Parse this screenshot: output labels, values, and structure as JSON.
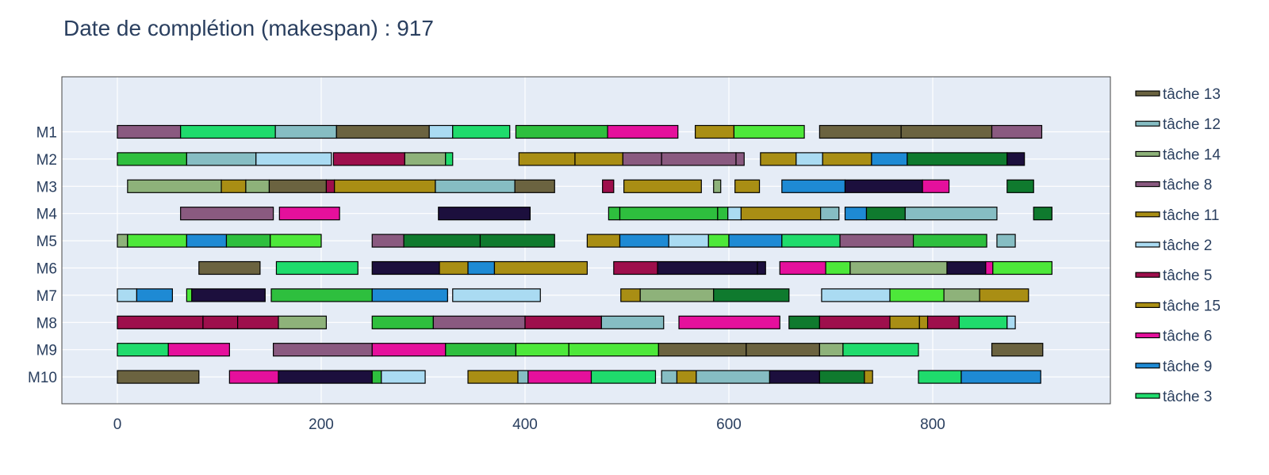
{
  "chart_data": {
    "type": "gantt",
    "title": "Date de complétion (makespan) : 917",
    "xlabel": "",
    "ylabel": "",
    "xlim": [
      -53,
      970
    ],
    "x_ticks": [
      0,
      200,
      400,
      600,
      800
    ],
    "grid": true,
    "legend_position": "right",
    "machines": [
      "M1",
      "M2",
      "M3",
      "M4",
      "M5",
      "M6",
      "M7",
      "M8",
      "M9",
      "M10"
    ],
    "legend": [
      {
        "name": "tâche 13",
        "color": "#6b6340"
      },
      {
        "name": "tâche 12",
        "color": "#86bdc3"
      },
      {
        "name": "tâche 14",
        "color": "#8eb27a"
      },
      {
        "name": "tâche 8",
        "color": "#8a5a80"
      },
      {
        "name": "tâche 11",
        "color": "#a98e14"
      },
      {
        "name": "tâche 2",
        "color": "#aadbf2"
      },
      {
        "name": "tâche 5",
        "color": "#9e0f4c"
      },
      {
        "name": "tâche 15",
        "color": "#a98e14"
      },
      {
        "name": "tâche 6",
        "color": "#e5109c"
      },
      {
        "name": "tâche 9",
        "color": "#1e8ad4"
      },
      {
        "name": "tâche 3",
        "color": "#1fdb6c"
      }
    ],
    "bars": [
      {
        "m": 0,
        "s": 0,
        "e": 62,
        "c": "#8a5a80"
      },
      {
        "m": 0,
        "s": 62,
        "e": 155,
        "c": "#1fdb6c"
      },
      {
        "m": 0,
        "s": 155,
        "e": 215,
        "c": "#86bdc3"
      },
      {
        "m": 0,
        "s": 215,
        "e": 306,
        "c": "#6b6340"
      },
      {
        "m": 0,
        "s": 306,
        "e": 329,
        "c": "#aadbf2"
      },
      {
        "m": 0,
        "s": 329,
        "e": 385,
        "c": "#1fdb6c"
      },
      {
        "m": 0,
        "s": 391,
        "e": 481,
        "c": "#2ebf3e"
      },
      {
        "m": 0,
        "s": 481,
        "e": 550,
        "c": "#e5109c"
      },
      {
        "m": 0,
        "s": 567,
        "e": 605,
        "c": "#a98e14"
      },
      {
        "m": 0,
        "s": 605,
        "e": 674,
        "c": "#4de83a"
      },
      {
        "m": 0,
        "s": 689,
        "e": 769,
        "c": "#6b6340"
      },
      {
        "m": 0,
        "s": 769,
        "e": 858,
        "c": "#6b6340"
      },
      {
        "m": 0,
        "s": 858,
        "e": 907,
        "c": "#8a5a80"
      },
      {
        "m": 1,
        "s": 0,
        "e": 68,
        "c": "#2ebf3e"
      },
      {
        "m": 1,
        "s": 68,
        "e": 136,
        "c": "#86bdc3"
      },
      {
        "m": 1,
        "s": 136,
        "e": 210,
        "c": "#aadbf2"
      },
      {
        "m": 1,
        "s": 212,
        "e": 282,
        "c": "#9e0f4c"
      },
      {
        "m": 1,
        "s": 282,
        "e": 322,
        "c": "#8eb27a"
      },
      {
        "m": 1,
        "s": 322,
        "e": 329,
        "c": "#1fdb6c"
      },
      {
        "m": 1,
        "s": 394,
        "e": 449,
        "c": "#a98e14"
      },
      {
        "m": 1,
        "s": 449,
        "e": 496,
        "c": "#a98e14"
      },
      {
        "m": 1,
        "s": 496,
        "e": 534,
        "c": "#8a5a80"
      },
      {
        "m": 1,
        "s": 534,
        "e": 607,
        "c": "#8a5a80"
      },
      {
        "m": 1,
        "s": 607,
        "e": 615,
        "c": "#8a5a80"
      },
      {
        "m": 1,
        "s": 631,
        "e": 666,
        "c": "#a98e14"
      },
      {
        "m": 1,
        "s": 666,
        "e": 692,
        "c": "#aadbf2"
      },
      {
        "m": 1,
        "s": 692,
        "e": 740,
        "c": "#a98e14"
      },
      {
        "m": 1,
        "s": 740,
        "e": 775,
        "c": "#1e8ad4"
      },
      {
        "m": 1,
        "s": 775,
        "e": 873,
        "c": "#0f7a2e"
      },
      {
        "m": 1,
        "s": 873,
        "e": 890,
        "c": "#1c0f3d"
      },
      {
        "m": 2,
        "s": 10,
        "e": 102,
        "c": "#8eb27a"
      },
      {
        "m": 2,
        "s": 102,
        "e": 126,
        "c": "#a98e14"
      },
      {
        "m": 2,
        "s": 126,
        "e": 149,
        "c": "#8eb27a"
      },
      {
        "m": 2,
        "s": 149,
        "e": 205,
        "c": "#6b6340"
      },
      {
        "m": 2,
        "s": 205,
        "e": 213,
        "c": "#9e0f4c"
      },
      {
        "m": 2,
        "s": 213,
        "e": 312,
        "c": "#a98e14"
      },
      {
        "m": 2,
        "s": 312,
        "e": 390,
        "c": "#86bdc3"
      },
      {
        "m": 2,
        "s": 390,
        "e": 429,
        "c": "#6b6340"
      },
      {
        "m": 2,
        "s": 476,
        "e": 487,
        "c": "#9e0f4c"
      },
      {
        "m": 2,
        "s": 497,
        "e": 573,
        "c": "#a98e14"
      },
      {
        "m": 2,
        "s": 585,
        "e": 592,
        "c": "#8eb27a"
      },
      {
        "m": 2,
        "s": 606,
        "e": 630,
        "c": "#a98e14"
      },
      {
        "m": 2,
        "s": 652,
        "e": 714,
        "c": "#1e8ad4"
      },
      {
        "m": 2,
        "s": 714,
        "e": 790,
        "c": "#1c0f3d"
      },
      {
        "m": 2,
        "s": 790,
        "e": 816,
        "c": "#e5109c"
      },
      {
        "m": 2,
        "s": 873,
        "e": 899,
        "c": "#0f7a2e"
      },
      {
        "m": 3,
        "s": 62,
        "e": 153,
        "c": "#8a5a80"
      },
      {
        "m": 3,
        "s": 159,
        "e": 218,
        "c": "#e5109c"
      },
      {
        "m": 3,
        "s": 315,
        "e": 405,
        "c": "#1c0f3d"
      },
      {
        "m": 3,
        "s": 482,
        "e": 493,
        "c": "#2ebf3e"
      },
      {
        "m": 3,
        "s": 493,
        "e": 589,
        "c": "#2ebf3e"
      },
      {
        "m": 3,
        "s": 589,
        "e": 599,
        "c": "#2ebf3e"
      },
      {
        "m": 3,
        "s": 599,
        "e": 612,
        "c": "#aadbf2"
      },
      {
        "m": 3,
        "s": 612,
        "e": 690,
        "c": "#a98e14"
      },
      {
        "m": 3,
        "s": 690,
        "e": 708,
        "c": "#86bdc3"
      },
      {
        "m": 3,
        "s": 714,
        "e": 735,
        "c": "#1e8ad4"
      },
      {
        "m": 3,
        "s": 735,
        "e": 773,
        "c": "#0f7a2e"
      },
      {
        "m": 3,
        "s": 773,
        "e": 863,
        "c": "#86bdc3"
      },
      {
        "m": 3,
        "s": 899,
        "e": 917,
        "c": "#0f7a2e"
      },
      {
        "m": 4,
        "s": 0,
        "e": 10,
        "c": "#8eb27a"
      },
      {
        "m": 4,
        "s": 10,
        "e": 68,
        "c": "#4de83a"
      },
      {
        "m": 4,
        "s": 68,
        "e": 107,
        "c": "#1e8ad4"
      },
      {
        "m": 4,
        "s": 107,
        "e": 150,
        "c": "#2ebf3e"
      },
      {
        "m": 4,
        "s": 150,
        "e": 200,
        "c": "#4de83a"
      },
      {
        "m": 4,
        "s": 250,
        "e": 281,
        "c": "#8a5a80"
      },
      {
        "m": 4,
        "s": 281,
        "e": 356,
        "c": "#0f7a2e"
      },
      {
        "m": 4,
        "s": 356,
        "e": 429,
        "c": "#0f7a2e"
      },
      {
        "m": 4,
        "s": 461,
        "e": 493,
        "c": "#a98e14"
      },
      {
        "m": 4,
        "s": 493,
        "e": 541,
        "c": "#1e8ad4"
      },
      {
        "m": 4,
        "s": 541,
        "e": 580,
        "c": "#aadbf2"
      },
      {
        "m": 4,
        "s": 580,
        "e": 600,
        "c": "#4de83a"
      },
      {
        "m": 4,
        "s": 600,
        "e": 652,
        "c": "#1e8ad4"
      },
      {
        "m": 4,
        "s": 652,
        "e": 709,
        "c": "#1fdb6c"
      },
      {
        "m": 4,
        "s": 709,
        "e": 781,
        "c": "#8a5a80"
      },
      {
        "m": 4,
        "s": 781,
        "e": 853,
        "c": "#2ebf3e"
      },
      {
        "m": 4,
        "s": 863,
        "e": 881,
        "c": "#86bdc3"
      },
      {
        "m": 5,
        "s": 80,
        "e": 140,
        "c": "#6b6340"
      },
      {
        "m": 5,
        "s": 156,
        "e": 236,
        "c": "#1fdb6c"
      },
      {
        "m": 5,
        "s": 250,
        "e": 316,
        "c": "#1c0f3d"
      },
      {
        "m": 5,
        "s": 316,
        "e": 344,
        "c": "#a98e14"
      },
      {
        "m": 5,
        "s": 344,
        "e": 370,
        "c": "#1e8ad4"
      },
      {
        "m": 5,
        "s": 370,
        "e": 461,
        "c": "#a98e14"
      },
      {
        "m": 5,
        "s": 487,
        "e": 530,
        "c": "#9e0f4c"
      },
      {
        "m": 5,
        "s": 530,
        "e": 628,
        "c": "#1c0f3d"
      },
      {
        "m": 5,
        "s": 628,
        "e": 636,
        "c": "#1c0f3d"
      },
      {
        "m": 5,
        "s": 650,
        "e": 695,
        "c": "#e5109c"
      },
      {
        "m": 5,
        "s": 695,
        "e": 719,
        "c": "#4de83a"
      },
      {
        "m": 5,
        "s": 719,
        "e": 814,
        "c": "#8eb27a"
      },
      {
        "m": 5,
        "s": 814,
        "e": 852,
        "c": "#1c0f3d"
      },
      {
        "m": 5,
        "s": 852,
        "e": 859,
        "c": "#e5109c"
      },
      {
        "m": 5,
        "s": 859,
        "e": 917,
        "c": "#4de83a"
      },
      {
        "m": 6,
        "s": 0,
        "e": 19,
        "c": "#aadbf2"
      },
      {
        "m": 6,
        "s": 19,
        "e": 54,
        "c": "#1e8ad4"
      },
      {
        "m": 6,
        "s": 68,
        "e": 73,
        "c": "#4de83a"
      },
      {
        "m": 6,
        "s": 73,
        "e": 145,
        "c": "#1c0f3d"
      },
      {
        "m": 6,
        "s": 151,
        "e": 250,
        "c": "#2ebf3e"
      },
      {
        "m": 6,
        "s": 250,
        "e": 324,
        "c": "#1e8ad4"
      },
      {
        "m": 6,
        "s": 329,
        "e": 415,
        "c": "#aadbf2"
      },
      {
        "m": 6,
        "s": 494,
        "e": 513,
        "c": "#a98e14"
      },
      {
        "m": 6,
        "s": 513,
        "e": 585,
        "c": "#8eb27a"
      },
      {
        "m": 6,
        "s": 585,
        "e": 659,
        "c": "#0f7a2e"
      },
      {
        "m": 6,
        "s": 691,
        "e": 758,
        "c": "#aadbf2"
      },
      {
        "m": 6,
        "s": 758,
        "e": 811,
        "c": "#4de83a"
      },
      {
        "m": 6,
        "s": 811,
        "e": 846,
        "c": "#8eb27a"
      },
      {
        "m": 6,
        "s": 846,
        "e": 894,
        "c": "#a98e14"
      },
      {
        "m": 7,
        "s": 0,
        "e": 84,
        "c": "#9e0f4c"
      },
      {
        "m": 7,
        "s": 84,
        "e": 118,
        "c": "#9e0f4c"
      },
      {
        "m": 7,
        "s": 118,
        "e": 158,
        "c": "#9e0f4c"
      },
      {
        "m": 7,
        "s": 158,
        "e": 205,
        "c": "#8eb27a"
      },
      {
        "m": 7,
        "s": 250,
        "e": 310,
        "c": "#2ebf3e"
      },
      {
        "m": 7,
        "s": 310,
        "e": 400,
        "c": "#8a5a80"
      },
      {
        "m": 7,
        "s": 400,
        "e": 475,
        "c": "#9e0f4c"
      },
      {
        "m": 7,
        "s": 475,
        "e": 536,
        "c": "#86bdc3"
      },
      {
        "m": 7,
        "s": 551,
        "e": 650,
        "c": "#e5109c"
      },
      {
        "m": 7,
        "s": 659,
        "e": 689,
        "c": "#0f7a2e"
      },
      {
        "m": 7,
        "s": 689,
        "e": 758,
        "c": "#9e0f4c"
      },
      {
        "m": 7,
        "s": 758,
        "e": 787,
        "c": "#a98e14"
      },
      {
        "m": 7,
        "s": 787,
        "e": 795,
        "c": "#a98e14"
      },
      {
        "m": 7,
        "s": 795,
        "e": 826,
        "c": "#9e0f4c"
      },
      {
        "m": 7,
        "s": 826,
        "e": 873,
        "c": "#1fdb6c"
      },
      {
        "m": 7,
        "s": 873,
        "e": 881,
        "c": "#aadbf2"
      },
      {
        "m": 8,
        "s": 0,
        "e": 50,
        "c": "#1fdb6c"
      },
      {
        "m": 8,
        "s": 50,
        "e": 110,
        "c": "#e5109c"
      },
      {
        "m": 8,
        "s": 153,
        "e": 250,
        "c": "#8a5a80"
      },
      {
        "m": 8,
        "s": 250,
        "e": 322,
        "c": "#e5109c"
      },
      {
        "m": 8,
        "s": 322,
        "e": 391,
        "c": "#2ebf3e"
      },
      {
        "m": 8,
        "s": 391,
        "e": 443,
        "c": "#4de83a"
      },
      {
        "m": 8,
        "s": 443,
        "e": 531,
        "c": "#4de83a"
      },
      {
        "m": 8,
        "s": 531,
        "e": 617,
        "c": "#6b6340"
      },
      {
        "m": 8,
        "s": 617,
        "e": 689,
        "c": "#6b6340"
      },
      {
        "m": 8,
        "s": 689,
        "e": 712,
        "c": "#8eb27a"
      },
      {
        "m": 8,
        "s": 712,
        "e": 786,
        "c": "#1fdb6c"
      },
      {
        "m": 8,
        "s": 858,
        "e": 908,
        "c": "#6b6340"
      },
      {
        "m": 9,
        "s": 0,
        "e": 80,
        "c": "#6b6340"
      },
      {
        "m": 9,
        "s": 110,
        "e": 158,
        "c": "#e5109c"
      },
      {
        "m": 9,
        "s": 158,
        "e": 250,
        "c": "#1c0f3d"
      },
      {
        "m": 9,
        "s": 250,
        "e": 259,
        "c": "#2ebf3e"
      },
      {
        "m": 9,
        "s": 259,
        "e": 302,
        "c": "#aadbf2"
      },
      {
        "m": 9,
        "s": 344,
        "e": 393,
        "c": "#a98e14"
      },
      {
        "m": 9,
        "s": 393,
        "e": 403,
        "c": "#86bdc3"
      },
      {
        "m": 9,
        "s": 403,
        "e": 465,
        "c": "#e5109c"
      },
      {
        "m": 9,
        "s": 465,
        "e": 528,
        "c": "#1fdb6c"
      },
      {
        "m": 9,
        "s": 534,
        "e": 549,
        "c": "#86bdc3"
      },
      {
        "m": 9,
        "s": 549,
        "e": 568,
        "c": "#a98e14"
      },
      {
        "m": 9,
        "s": 568,
        "e": 640,
        "c": "#86bdc3"
      },
      {
        "m": 9,
        "s": 640,
        "e": 689,
        "c": "#1c0f3d"
      },
      {
        "m": 9,
        "s": 689,
        "e": 733,
        "c": "#0f7a2e"
      },
      {
        "m": 9,
        "s": 733,
        "e": 741,
        "c": "#a98e14"
      },
      {
        "m": 9,
        "s": 786,
        "e": 828,
        "c": "#1fdb6c"
      },
      {
        "m": 9,
        "s": 828,
        "e": 906,
        "c": "#1e8ad4"
      }
    ]
  }
}
